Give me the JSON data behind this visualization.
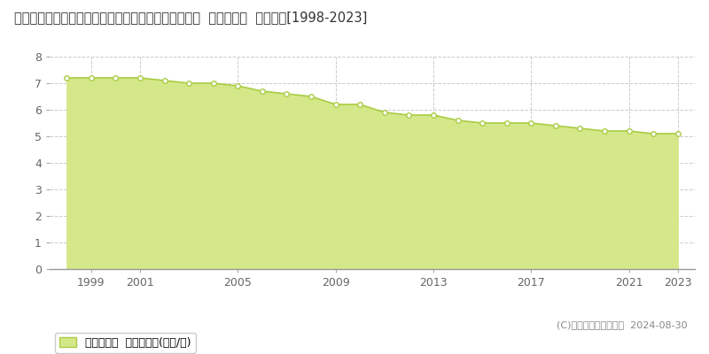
{
  "title": "和歌山県有田郡広川町大字下津木字権蔵原７４３番３  基準地価格  地価推移[1998-2023]",
  "years": [
    1998,
    1999,
    2000,
    2001,
    2002,
    2003,
    2004,
    2005,
    2006,
    2007,
    2008,
    2009,
    2010,
    2011,
    2012,
    2013,
    2014,
    2015,
    2016,
    2017,
    2018,
    2019,
    2020,
    2021,
    2022,
    2023
  ],
  "values": [
    7.2,
    7.2,
    7.2,
    7.2,
    7.1,
    7.0,
    7.0,
    6.9,
    6.7,
    6.6,
    6.5,
    6.2,
    6.2,
    5.9,
    5.8,
    5.8,
    5.6,
    5.5,
    5.5,
    5.5,
    5.4,
    5.3,
    5.2,
    5.2,
    5.1,
    5.1
  ],
  "line_color": "#aacc44",
  "fill_color": "#d4e88a",
  "marker_color": "#ffffff",
  "marker_edge_color": "#aacc44",
  "grid_color": "#cccccc",
  "background_color": "#ffffff",
  "ylim": [
    0,
    8
  ],
  "yticks": [
    0,
    1,
    2,
    3,
    4,
    5,
    6,
    7,
    8
  ],
  "xtick_labels": [
    "1999",
    "2001",
    "2005",
    "2009",
    "2013",
    "2017",
    "2021",
    "2023"
  ],
  "xtick_positions": [
    1999,
    2001,
    2005,
    2009,
    2013,
    2017,
    2021,
    2023
  ],
  "legend_label": "基準地価格  平均坪単価(万円/坪)",
  "copyright_text": "(C)土地価格ドットコム  2024-08-30",
  "title_fontsize": 10.5,
  "axis_fontsize": 9,
  "legend_fontsize": 9
}
